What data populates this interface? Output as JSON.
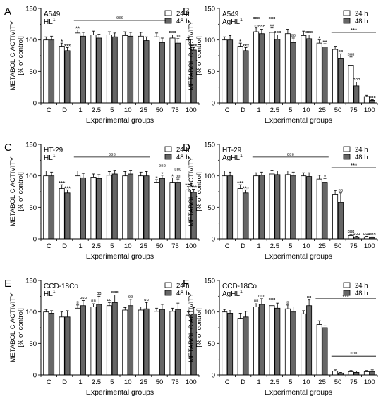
{
  "figure": {
    "y_axis_label_line1": "METABOLIC ACTIVITY",
    "y_axis_label_line2": "[% of control]",
    "x_axis_label": "Experimental groups",
    "legend": {
      "series_1": "24 h",
      "series_2": "48 h"
    },
    "colors": {
      "series_1": "#ffffff",
      "series_2": "#666666",
      "axis": "#000000"
    }
  },
  "chart_data": [
    {
      "type": "bar",
      "panel_letter": "A",
      "cell_line": "A549",
      "compound_base": "HL",
      "compound_sup": "1",
      "categories": [
        "C",
        "D",
        "1",
        "2.5",
        "5",
        "10",
        "25",
        "50",
        "75",
        "100"
      ],
      "series": [
        {
          "name": "24 h",
          "values": [
            100,
            90,
            111,
            108,
            108,
            107,
            106,
            105,
            103,
            100
          ],
          "errors": [
            5,
            5,
            5,
            6,
            5,
            6,
            6,
            6,
            5,
            4
          ]
        },
        {
          "name": "48 h",
          "values": [
            100,
            83,
            106,
            103,
            105,
            106,
            99,
            96,
            95,
            84
          ],
          "errors": [
            6,
            5,
            6,
            6,
            6,
            6,
            6,
            7,
            7,
            4
          ]
        }
      ],
      "xlabel": "Experimental groups",
      "ylabel": "METABOLIC ACTIVITY [% of control]",
      "ylim": [
        0,
        150
      ],
      "yticks": [
        0,
        50,
        100,
        150
      ],
      "grid": false,
      "legend_position": "top-right",
      "annotations": [
        {
          "text": "*",
          "category": "D",
          "series": 0,
          "offset": 0
        },
        {
          "text": "***",
          "category": "D",
          "series": 1,
          "offset": 0
        },
        {
          "text": "**",
          "category": "1",
          "series": 0,
          "offset": 0
        },
        {
          "text": "¤¤¤",
          "category": "75",
          "series": 0,
          "offset": 0
        },
        {
          "text": "¤¤",
          "category": "75",
          "series": 1,
          "offset": 0
        },
        {
          "text": "***",
          "category": "100",
          "series": 1,
          "offset": 0
        }
      ],
      "brackets": [
        {
          "from": "1",
          "to": "50",
          "y": 131,
          "text": "¤¤¤"
        }
      ]
    },
    {
      "type": "bar",
      "panel_letter": "B",
      "cell_line": "A549",
      "compound_base": "AgHL",
      "compound_sup": "1",
      "categories": [
        "C",
        "D",
        "1",
        "2.5",
        "5",
        "10",
        "25",
        "50",
        "75",
        "100"
      ],
      "series": [
        {
          "name": "24 h",
          "values": [
            100,
            90,
            113,
            112,
            110,
            107,
            95,
            85,
            60,
            10
          ],
          "errors": [
            5,
            5,
            6,
            7,
            7,
            7,
            5,
            5,
            13,
            2
          ]
        },
        {
          "name": "48 h",
          "values": [
            100,
            83,
            110,
            101,
            96,
            102,
            89,
            70,
            27,
            4
          ],
          "errors": [
            7,
            5,
            7,
            7,
            7,
            6,
            5,
            8,
            6,
            1
          ]
        }
      ],
      "xlabel": "Experimental groups",
      "ylabel": "METABOLIC ACTIVITY [% of control]",
      "ylim": [
        0,
        150
      ],
      "yticks": [
        0,
        50,
        100,
        150
      ],
      "grid": false,
      "legend_position": "top-right",
      "annotations": [
        {
          "text": "*",
          "category": "D",
          "series": 0,
          "offset": 0
        },
        {
          "text": "***",
          "category": "D",
          "series": 1,
          "offset": 0
        },
        {
          "text": "¤¤¤",
          "category": "1",
          "series": 0,
          "offset": 10
        },
        {
          "text": "**",
          "category": "1",
          "series": 0,
          "offset": 0
        },
        {
          "text": "¤¤¤",
          "category": "1",
          "series": 1,
          "offset": 0
        },
        {
          "text": "¤¤¤",
          "category": "2.5",
          "series": 0,
          "offset": 10
        },
        {
          "text": "**",
          "category": "2.5",
          "series": 0,
          "offset": 0
        },
        {
          "text": "¤¤¤",
          "category": "2.5",
          "series": 1,
          "offset": 0
        },
        {
          "text": "¤¤",
          "category": "5",
          "series": 1,
          "offset": 0
        },
        {
          "text": "¤¤¤",
          "category": "10",
          "series": 1,
          "offset": 0
        },
        {
          "text": "*",
          "category": "25",
          "series": 0,
          "offset": 0
        },
        {
          "text": "**",
          "category": "25",
          "series": 1,
          "offset": 0
        },
        {
          "text": "¤¤",
          "category": "50",
          "series": 1,
          "offset": 0
        },
        {
          "text": "¤¤¤",
          "category": "75",
          "series": 0,
          "offset": 0
        },
        {
          "text": "¤¤¤",
          "category": "75",
          "series": 1,
          "offset": 0
        },
        {
          "text": "¤¤¤",
          "category": "100",
          "series": 1,
          "offset": 0
        }
      ],
      "brackets": [
        {
          "from": "50",
          "to": "100",
          "y": 112,
          "text": "***"
        }
      ]
    },
    {
      "type": "bar",
      "panel_letter": "C",
      "cell_line": "HT-29",
      "compound_base": "HL",
      "compound_sup": "1",
      "categories": [
        "C",
        "D",
        "1",
        "2.5",
        "5",
        "10",
        "25",
        "50",
        "75",
        "100"
      ],
      "series": [
        {
          "name": "24 h",
          "values": [
            100,
            80,
            100,
            98,
            101,
            100,
            100,
            90,
            90,
            78
          ],
          "errors": [
            8,
            6,
            8,
            5,
            6,
            7,
            6,
            4,
            7,
            5
          ]
        },
        {
          "name": "48 h",
          "values": [
            100,
            73,
            97,
            96,
            103,
            103,
            100,
            96,
            90,
            74
          ],
          "errors": [
            6,
            5,
            7,
            6,
            6,
            6,
            7,
            5,
            5,
            5
          ]
        }
      ],
      "xlabel": "Experimental groups",
      "ylabel": "METABOLIC ACTIVITY [% of control]",
      "ylim": [
        0,
        150
      ],
      "yticks": [
        0,
        50,
        100,
        150
      ],
      "grid": false,
      "legend_position": "top-right",
      "annotations": [
        {
          "text": "***",
          "category": "D",
          "series": 0,
          "offset": 0
        },
        {
          "text": "***",
          "category": "D",
          "series": 1,
          "offset": 0
        },
        {
          "text": "*",
          "category": "50",
          "series": 0,
          "offset": 0
        },
        {
          "text": "¤¤¤",
          "category": "50",
          "series": 1,
          "offset": 10
        },
        {
          "text": "*",
          "category": "50",
          "series": 1,
          "offset": 0
        },
        {
          "text": "*",
          "category": "75",
          "series": 0,
          "offset": 0
        },
        {
          "text": "¤¤¤",
          "category": "75",
          "series": 1,
          "offset": 10
        },
        {
          "text": "¤¤",
          "category": "75",
          "series": 1,
          "offset": 0
        },
        {
          "text": "***",
          "category": "100",
          "series": 0,
          "offset": 0
        },
        {
          "text": "***",
          "category": "100",
          "series": 1,
          "offset": 0
        }
      ],
      "brackets": [
        {
          "from": "1",
          "to": "25",
          "y": 130,
          "text": "¤¤¤"
        }
      ]
    },
    {
      "type": "bar",
      "panel_letter": "D",
      "cell_line": "HT-29",
      "compound_base": "AgHL",
      "compound_sup": "1",
      "categories": [
        "C",
        "D",
        "1",
        "2.5",
        "5",
        "10",
        "25",
        "50",
        "75",
        "100"
      ],
      "series": [
        {
          "name": "24 h",
          "values": [
            100,
            80,
            100,
            103,
            102,
            100,
            95,
            70,
            5,
            3
          ],
          "errors": [
            8,
            6,
            5,
            6,
            6,
            5,
            6,
            7,
            2,
            1
          ]
        },
        {
          "name": "48 h",
          "values": [
            100,
            73,
            101,
            102,
            100,
            99,
            90,
            58,
            3,
            2
          ],
          "errors": [
            6,
            5,
            5,
            6,
            6,
            6,
            6,
            15,
            1,
            1
          ]
        }
      ],
      "xlabel": "Experimental groups",
      "ylabel": "METABOLIC ACTIVITY [% of control]",
      "ylim": [
        0,
        150
      ],
      "yticks": [
        0,
        50,
        100,
        150
      ],
      "grid": false,
      "legend_position": "top-right",
      "annotations": [
        {
          "text": "***",
          "category": "D",
          "series": 0,
          "offset": 0
        },
        {
          "text": "***",
          "category": "D",
          "series": 1,
          "offset": 0
        },
        {
          "text": "*",
          "category": "25",
          "series": 1,
          "offset": 0
        },
        {
          "text": "¤¤",
          "category": "50",
          "series": 1,
          "offset": 0
        },
        {
          "text": "¤¤¤",
          "category": "75",
          "series": 0,
          "offset": 0
        },
        {
          "text": "¤¤¤",
          "category": "75",
          "series": 1,
          "offset": 0
        },
        {
          "text": "¤¤¤",
          "category": "100",
          "series": 0,
          "offset": 0
        },
        {
          "text": "¤¤¤",
          "category": "100",
          "series": 1,
          "offset": 0
        }
      ],
      "brackets": [
        {
          "from": "1",
          "to": "25",
          "y": 130,
          "text": "¤¤¤"
        },
        {
          "from": "50",
          "to": "100",
          "y": 113,
          "text": "***"
        }
      ]
    },
    {
      "type": "bar",
      "panel_letter": "E",
      "cell_line": "CCD-18Co",
      "compound_base": "HL",
      "compound_sup": "1",
      "categories": [
        "C",
        "D",
        "1",
        "2.5",
        "5",
        "10",
        "25",
        "50",
        "75",
        "100"
      ],
      "series": [
        {
          "name": "24 h",
          "values": [
            100,
            92,
            106,
            108,
            110,
            103,
            103,
            101,
            101,
            95
          ],
          "errors": [
            4,
            8,
            5,
            5,
            5,
            4,
            5,
            5,
            5,
            5
          ]
        },
        {
          "name": "48 h",
          "values": [
            98,
            92,
            110,
            112,
            115,
            110,
            105,
            104,
            104,
            97
          ],
          "errors": [
            4,
            10,
            8,
            13,
            12,
            10,
            10,
            8,
            10,
            10
          ]
        }
      ],
      "xlabel": "Experimental groups",
      "ylabel": "METABOLIC ACTIVITY [% of control]",
      "ylim": [
        0,
        150
      ],
      "yticks": [
        0,
        50,
        100,
        150
      ],
      "grid": false,
      "legend_position": "top-right",
      "annotations": [
        {
          "text": "¤",
          "category": "1",
          "series": 0,
          "offset": 0
        },
        {
          "text": "¤¤¤",
          "category": "1",
          "series": 1,
          "offset": 0
        },
        {
          "text": "¤¤",
          "category": "2.5",
          "series": 0,
          "offset": 0
        },
        {
          "text": "¤¤",
          "category": "2.5",
          "series": 1,
          "offset": 0
        },
        {
          "text": "¤¤",
          "category": "5",
          "series": 0,
          "offset": 0
        },
        {
          "text": "¤¤¤",
          "category": "5",
          "series": 1,
          "offset": 0
        },
        {
          "text": "¤¤",
          "category": "10",
          "series": 1,
          "offset": 0
        },
        {
          "text": "¤¤",
          "category": "25",
          "series": 1,
          "offset": 0
        }
      ],
      "brackets": []
    },
    {
      "type": "bar",
      "panel_letter": "F",
      "cell_line": "CCD-18Co",
      "compound_base": "AgHL",
      "compound_sup": "1",
      "categories": [
        "C",
        "D",
        "1",
        "2.5",
        "5",
        "10",
        "25",
        "50",
        "75",
        "100"
      ],
      "series": [
        {
          "name": "24 h",
          "values": [
            100,
            90,
            108,
            110,
            105,
            97,
            80,
            6,
            5,
            5
          ],
          "errors": [
            4,
            8,
            5,
            6,
            6,
            5,
            6,
            2,
            2,
            2
          ]
        },
        {
          "name": "48 h",
          "values": [
            98,
            92,
            112,
            106,
            100,
            110,
            75,
            3,
            4,
            5
          ],
          "errors": [
            4,
            9,
            9,
            8,
            8,
            9,
            3,
            1,
            2,
            3
          ]
        }
      ],
      "xlabel": "Experimental groups",
      "ylabel": "METABOLIC ACTIVITY [% of control]",
      "ylim": [
        0,
        150
      ],
      "yticks": [
        0,
        50,
        100,
        150
      ],
      "grid": false,
      "legend_position": "top-right",
      "annotations": [
        {
          "text": "¤¤",
          "category": "1",
          "series": 0,
          "offset": 0
        },
        {
          "text": "¤¤¤",
          "category": "1",
          "series": 1,
          "offset": 0
        },
        {
          "text": "¤¤¤",
          "category": "2.5",
          "series": 0,
          "offset": 0
        },
        {
          "text": "¤",
          "category": "5",
          "series": 0,
          "offset": 0
        },
        {
          "text": "¤¤",
          "category": "10",
          "series": 1,
          "offset": 0
        }
      ],
      "brackets": [
        {
          "from": "25",
          "to": "100",
          "y": 121,
          "text": "***"
        },
        {
          "from": "50",
          "to": "100",
          "y": 30,
          "text": "¤¤¤"
        }
      ]
    }
  ]
}
